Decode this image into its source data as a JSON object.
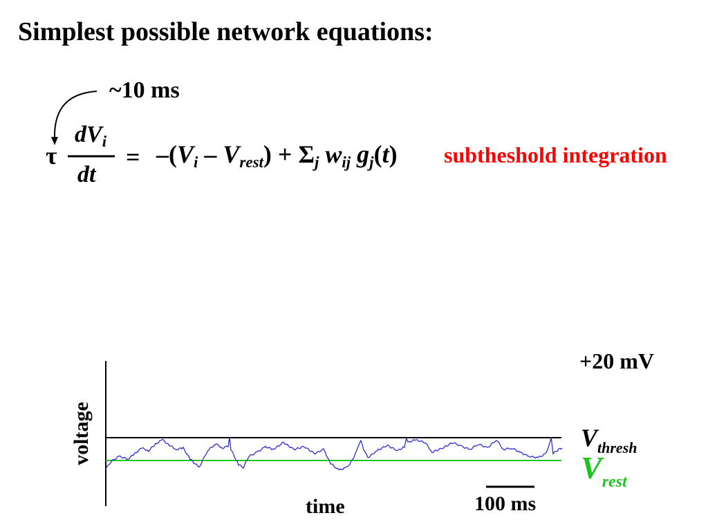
{
  "title": "Simplest possible network equations:",
  "equation": {
    "time_constant": "~10 ms",
    "tau": "τ",
    "numerator_base": "dV",
    "numerator_sub": "i",
    "denominator": "dt",
    "equals": "=",
    "rhs": {
      "open": "–(",
      "v": "V",
      "v_sub": "i",
      "minus": " – ",
      "v2": "V",
      "v2_sub": "rest",
      "close_plus": ") + ",
      "sigma": "Σ",
      "sigma_sub": "j",
      "w": " w",
      "w_sub": "ij",
      "g": " g",
      "g_sub": "j",
      "paren_open": "(",
      "t": "t",
      "paren_close": ")"
    },
    "annotation": "subtheshold integration"
  },
  "plot": {
    "ylabel": "voltage",
    "xlabel": "time",
    "scale_bar": "100 ms",
    "top_label": "+20 mV",
    "thresh_label": "V",
    "thresh_sub": "thresh",
    "rest_label": "V",
    "rest_sub": "rest",
    "colors": {
      "trace": "#2b2bd6",
      "rest_line": "#1fc41f",
      "thresh_line": "#000000",
      "annotation": "#ff0000",
      "rest_label": "#1fc41f"
    }
  }
}
